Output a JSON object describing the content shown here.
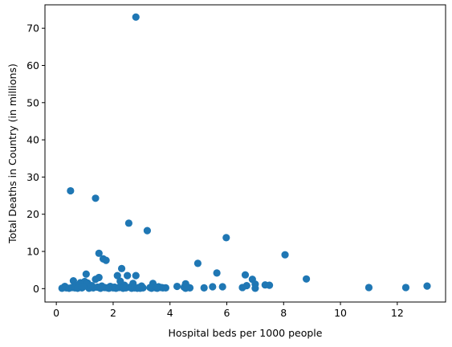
{
  "chart_data": {
    "type": "scatter",
    "title": "",
    "xlabel": "Hospital beds per 1000 people",
    "ylabel": "Total Deaths in Country (in millions)",
    "xlim": [
      -0.4,
      13.7
    ],
    "ylim": [
      -3.6,
      76.3
    ],
    "xticks": [
      0,
      2,
      4,
      6,
      8,
      10,
      12
    ],
    "yticks": [
      0,
      10,
      20,
      30,
      40,
      50,
      60,
      70
    ],
    "grid": false,
    "marker_color": "#1f77b4",
    "points": [
      {
        "x": 2.8,
        "y": 73.0
      },
      {
        "x": 0.5,
        "y": 26.3
      },
      {
        "x": 1.38,
        "y": 24.3
      },
      {
        "x": 2.55,
        "y": 17.6
      },
      {
        "x": 3.2,
        "y": 15.6
      },
      {
        "x": 5.98,
        "y": 13.7
      },
      {
        "x": 1.5,
        "y": 9.5
      },
      {
        "x": 8.05,
        "y": 9.1
      },
      {
        "x": 1.65,
        "y": 8.0
      },
      {
        "x": 1.75,
        "y": 7.6
      },
      {
        "x": 4.98,
        "y": 6.8
      },
      {
        "x": 2.3,
        "y": 5.4
      },
      {
        "x": 5.65,
        "y": 4.2
      },
      {
        "x": 1.05,
        "y": 3.9
      },
      {
        "x": 6.65,
        "y": 3.7
      },
      {
        "x": 2.15,
        "y": 3.5
      },
      {
        "x": 2.5,
        "y": 3.5
      },
      {
        "x": 2.8,
        "y": 3.5
      },
      {
        "x": 1.5,
        "y": 3.0
      },
      {
        "x": 1.38,
        "y": 2.5
      },
      {
        "x": 6.9,
        "y": 2.5
      },
      {
        "x": 8.8,
        "y": 2.6
      },
      {
        "x": 0.6,
        "y": 2.1
      },
      {
        "x": 2.25,
        "y": 2.0
      },
      {
        "x": 1.0,
        "y": 1.9
      },
      {
        "x": 0.85,
        "y": 1.6
      },
      {
        "x": 1.1,
        "y": 1.5
      },
      {
        "x": 2.7,
        "y": 1.4
      },
      {
        "x": 3.4,
        "y": 1.4
      },
      {
        "x": 4.55,
        "y": 1.3
      },
      {
        "x": 7.0,
        "y": 1.2
      },
      {
        "x": 7.35,
        "y": 1.0
      },
      {
        "x": 7.5,
        "y": 0.9
      },
      {
        "x": 6.7,
        "y": 0.8
      },
      {
        "x": 13.05,
        "y": 0.7
      },
      {
        "x": 0.3,
        "y": 0.6
      },
      {
        "x": 0.7,
        "y": 0.9
      },
      {
        "x": 1.25,
        "y": 0.8
      },
      {
        "x": 1.6,
        "y": 0.7
      },
      {
        "x": 1.9,
        "y": 0.6
      },
      {
        "x": 2.4,
        "y": 0.9
      },
      {
        "x": 3.0,
        "y": 0.7
      },
      {
        "x": 3.6,
        "y": 0.5
      },
      {
        "x": 4.25,
        "y": 0.6
      },
      {
        "x": 5.5,
        "y": 0.5
      },
      {
        "x": 5.85,
        "y": 0.5
      },
      {
        "x": 11.0,
        "y": 0.3
      },
      {
        "x": 12.3,
        "y": 0.3
      },
      {
        "x": 5.2,
        "y": 0.2
      },
      {
        "x": 4.7,
        "y": 0.2
      },
      {
        "x": 6.55,
        "y": 0.3
      },
      {
        "x": 7.0,
        "y": 0.1
      },
      {
        "x": 0.2,
        "y": 0.1
      },
      {
        "x": 0.35,
        "y": 0.2
      },
      {
        "x": 0.45,
        "y": 0.1
      },
      {
        "x": 0.55,
        "y": 0.3
      },
      {
        "x": 0.65,
        "y": 0.2
      },
      {
        "x": 0.75,
        "y": 0.1
      },
      {
        "x": 0.9,
        "y": 0.2
      },
      {
        "x": 0.95,
        "y": 0.5
      },
      {
        "x": 1.15,
        "y": 0.1
      },
      {
        "x": 1.2,
        "y": 0.3
      },
      {
        "x": 1.3,
        "y": 0.2
      },
      {
        "x": 1.45,
        "y": 0.4
      },
      {
        "x": 1.55,
        "y": 0.1
      },
      {
        "x": 1.7,
        "y": 0.3
      },
      {
        "x": 1.8,
        "y": 0.2
      },
      {
        "x": 1.85,
        "y": 0.1
      },
      {
        "x": 2.0,
        "y": 0.2
      },
      {
        "x": 2.05,
        "y": 0.4
      },
      {
        "x": 2.1,
        "y": 0.1
      },
      {
        "x": 2.2,
        "y": 0.3
      },
      {
        "x": 2.35,
        "y": 0.1
      },
      {
        "x": 2.45,
        "y": 0.2
      },
      {
        "x": 2.6,
        "y": 0.4
      },
      {
        "x": 2.65,
        "y": 0.1
      },
      {
        "x": 2.75,
        "y": 0.2
      },
      {
        "x": 2.85,
        "y": 0.1
      },
      {
        "x": 2.9,
        "y": 0.3
      },
      {
        "x": 2.95,
        "y": 0.1
      },
      {
        "x": 3.05,
        "y": 0.2
      },
      {
        "x": 3.3,
        "y": 0.3
      },
      {
        "x": 3.35,
        "y": 0.1
      },
      {
        "x": 3.5,
        "y": 0.2
      },
      {
        "x": 3.55,
        "y": 0.1
      },
      {
        "x": 3.7,
        "y": 0.3
      },
      {
        "x": 3.75,
        "y": 0.2
      },
      {
        "x": 3.85,
        "y": 0.2
      },
      {
        "x": 4.5,
        "y": 0.4
      },
      {
        "x": 4.55,
        "y": 0.1
      },
      {
        "x": 4.6,
        "y": 0.5
      }
    ]
  }
}
